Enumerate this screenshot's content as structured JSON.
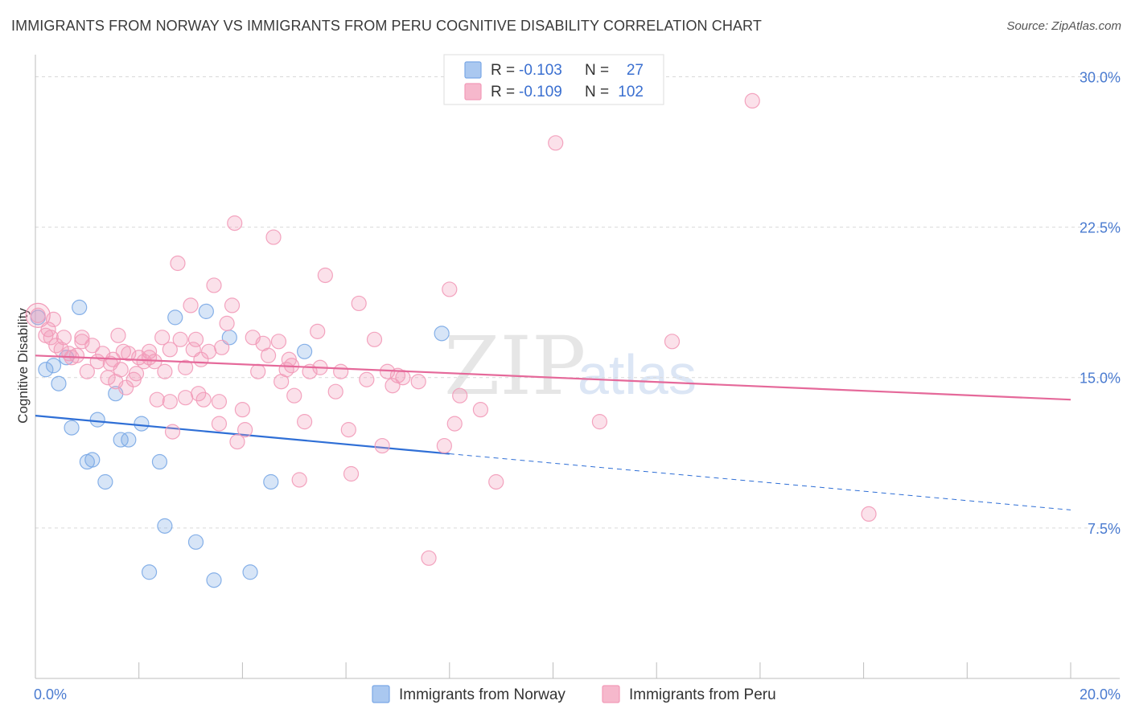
{
  "title": "IMMIGRANTS FROM NORWAY VS IMMIGRANTS FROM PERU COGNITIVE DISABILITY CORRELATION CHART",
  "source": "Source: ZipAtlas.com",
  "watermark": {
    "zip": "ZIP",
    "atlas": "atlas"
  },
  "legend_top": [
    {
      "r_label": "R =",
      "r_value": "-0.103",
      "n_label": "N =",
      "n_value": "27",
      "color": "#aac8f0"
    },
    {
      "r_label": "R =",
      "r_value": "-0.109",
      "n_label": "N =",
      "n_value": "102",
      "color": "#f6b8cc"
    }
  ],
  "legend_bottom": [
    {
      "label": "Immigrants from Norway",
      "color": "#aac8f0"
    },
    {
      "label": "Immigrants from Peru",
      "color": "#f6b8cc"
    }
  ],
  "chart_data": {
    "type": "scatter",
    "xlabel": "",
    "ylabel": "Cognitive Disability",
    "xlim": [
      0,
      20
    ],
    "ylim": [
      0,
      30.7
    ],
    "x_ticks": [
      {
        "value": 0,
        "label": "0.0%"
      },
      {
        "value": 20,
        "label": "20.0%"
      }
    ],
    "y_ticks": [
      {
        "value": 7.5,
        "label": "7.5%"
      },
      {
        "value": 15.0,
        "label": "15.0%"
      },
      {
        "value": 22.5,
        "label": "22.5%"
      },
      {
        "value": 30.0,
        "label": "30.0%"
      }
    ],
    "grid": true,
    "series": [
      {
        "name": "Immigrants from Norway",
        "color": "#7aa8e6",
        "line_color": "#2f6fd6",
        "trend": {
          "x0": 0,
          "y0": 13.1,
          "x1": 8.0,
          "y1": 11.2,
          "dash_to_x": 20,
          "dash_to_y": 8.4
        },
        "points": [
          [
            0.05,
            18.0
          ],
          [
            0.2,
            15.4
          ],
          [
            0.35,
            15.6
          ],
          [
            0.45,
            14.7
          ],
          [
            0.6,
            16.0
          ],
          [
            0.7,
            12.5
          ],
          [
            0.85,
            18.5
          ],
          [
            1.0,
            10.8
          ],
          [
            1.1,
            10.9
          ],
          [
            1.2,
            12.9
          ],
          [
            1.35,
            9.8
          ],
          [
            1.55,
            14.2
          ],
          [
            1.65,
            11.9
          ],
          [
            1.8,
            11.9
          ],
          [
            2.05,
            12.7
          ],
          [
            2.2,
            5.3
          ],
          [
            2.4,
            10.8
          ],
          [
            2.5,
            7.6
          ],
          [
            2.7,
            18.0
          ],
          [
            3.1,
            6.8
          ],
          [
            3.3,
            18.3
          ],
          [
            3.45,
            4.9
          ],
          [
            3.75,
            17.0
          ],
          [
            4.15,
            5.3
          ],
          [
            4.55,
            9.8
          ],
          [
            5.2,
            16.3
          ],
          [
            7.85,
            17.2
          ]
        ]
      },
      {
        "name": "Immigrants from Peru",
        "color": "#f29ab8",
        "line_color": "#e5699a",
        "trend": {
          "x0": 0,
          "y0": 16.1,
          "x1": 20,
          "y1": 13.9
        },
        "points": [
          [
            0.05,
            18.1
          ],
          [
            0.2,
            17.1
          ],
          [
            0.3,
            17.0
          ],
          [
            0.4,
            16.6
          ],
          [
            0.5,
            16.4
          ],
          [
            0.55,
            17.0
          ],
          [
            0.7,
            16.0
          ],
          [
            0.8,
            16.1
          ],
          [
            0.9,
            16.8
          ],
          [
            1.0,
            15.3
          ],
          [
            1.1,
            16.6
          ],
          [
            1.2,
            15.8
          ],
          [
            1.3,
            16.2
          ],
          [
            1.4,
            15.0
          ],
          [
            1.5,
            15.9
          ],
          [
            1.55,
            14.8
          ],
          [
            1.6,
            17.1
          ],
          [
            1.65,
            15.4
          ],
          [
            1.75,
            14.5
          ],
          [
            1.8,
            16.2
          ],
          [
            1.9,
            14.9
          ],
          [
            2.0,
            16.0
          ],
          [
            2.1,
            15.8
          ],
          [
            2.2,
            16.3
          ],
          [
            2.3,
            15.8
          ],
          [
            2.35,
            13.9
          ],
          [
            2.45,
            17.0
          ],
          [
            2.5,
            15.3
          ],
          [
            2.6,
            13.8
          ],
          [
            2.65,
            12.3
          ],
          [
            2.75,
            20.7
          ],
          [
            2.8,
            16.9
          ],
          [
            2.9,
            14.0
          ],
          [
            3.0,
            18.6
          ],
          [
            3.05,
            16.4
          ],
          [
            3.15,
            14.2
          ],
          [
            3.2,
            15.9
          ],
          [
            3.25,
            13.9
          ],
          [
            3.35,
            16.3
          ],
          [
            3.45,
            19.6
          ],
          [
            3.55,
            13.8
          ],
          [
            3.6,
            16.5
          ],
          [
            3.7,
            17.7
          ],
          [
            3.8,
            18.6
          ],
          [
            3.85,
            22.7
          ],
          [
            3.9,
            11.8
          ],
          [
            4.0,
            13.4
          ],
          [
            4.05,
            12.4
          ],
          [
            4.2,
            17.0
          ],
          [
            4.3,
            15.3
          ],
          [
            4.4,
            16.7
          ],
          [
            4.5,
            16.1
          ],
          [
            4.6,
            22.0
          ],
          [
            4.7,
            16.8
          ],
          [
            4.75,
            14.8
          ],
          [
            4.85,
            15.4
          ],
          [
            4.9,
            15.9
          ],
          [
            5.0,
            14.1
          ],
          [
            5.1,
            9.9
          ],
          [
            5.2,
            12.8
          ],
          [
            5.3,
            15.3
          ],
          [
            5.45,
            17.3
          ],
          [
            5.5,
            15.5
          ],
          [
            5.6,
            20.1
          ],
          [
            5.8,
            14.3
          ],
          [
            5.9,
            15.3
          ],
          [
            6.05,
            12.4
          ],
          [
            6.1,
            10.2
          ],
          [
            6.25,
            18.7
          ],
          [
            6.4,
            14.9
          ],
          [
            6.55,
            16.9
          ],
          [
            6.7,
            11.6
          ],
          [
            6.8,
            15.3
          ],
          [
            6.9,
            14.6
          ],
          [
            7.0,
            15.1
          ],
          [
            7.1,
            15.0
          ],
          [
            7.4,
            14.8
          ],
          [
            7.6,
            6.0
          ],
          [
            7.9,
            11.6
          ],
          [
            8.1,
            12.7
          ],
          [
            8.2,
            14.1
          ],
          [
            8.6,
            13.4
          ],
          [
            8.9,
            9.8
          ],
          [
            10.05,
            26.7
          ],
          [
            10.9,
            12.8
          ],
          [
            12.3,
            16.8
          ],
          [
            13.85,
            28.8
          ],
          [
            16.1,
            8.2
          ],
          [
            1.7,
            16.3
          ],
          [
            2.2,
            16.0
          ],
          [
            0.25,
            17.4
          ],
          [
            0.65,
            16.2
          ],
          [
            1.45,
            15.7
          ],
          [
            2.9,
            15.5
          ],
          [
            0.9,
            17.0
          ],
          [
            1.95,
            15.2
          ],
          [
            3.55,
            12.7
          ],
          [
            4.95,
            15.6
          ],
          [
            0.35,
            17.9
          ],
          [
            2.6,
            16.4
          ],
          [
            3.1,
            16.9
          ],
          [
            8.0,
            19.4
          ]
        ]
      }
    ]
  }
}
